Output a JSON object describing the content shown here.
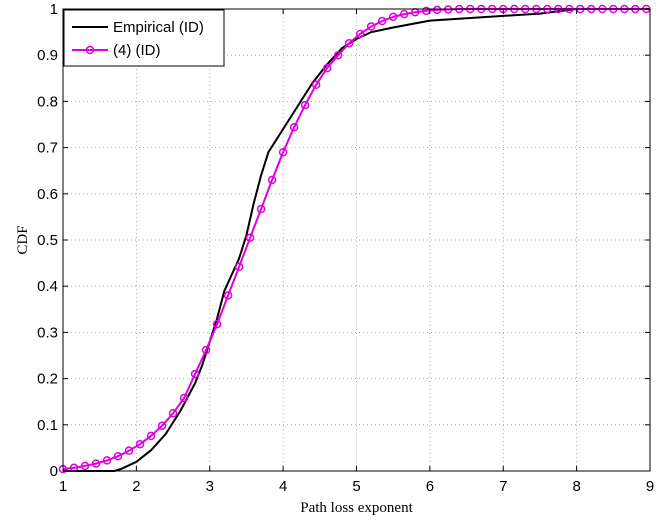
{
  "chart_data": {
    "type": "line",
    "xlabel": "Path loss exponent",
    "ylabel": "CDF",
    "xlim": [
      1,
      9
    ],
    "ylim": [
      0,
      1
    ],
    "xticks": [
      1,
      2,
      3,
      4,
      5,
      6,
      7,
      8,
      9
    ],
    "yticks": [
      0,
      0.1,
      0.2,
      0.3,
      0.4,
      0.5,
      0.6,
      0.7,
      0.8,
      0.9,
      1
    ],
    "xtick_labels": [
      "1",
      "2",
      "3",
      "4",
      "5",
      "6",
      "7",
      "8",
      "9"
    ],
    "ytick_labels": [
      "0",
      "0.1",
      "0.2",
      "0.3",
      "0.4",
      "0.5",
      "0.6",
      "0.7",
      "0.8",
      "0.9",
      "1"
    ],
    "grid": true,
    "legend_position": "top-left",
    "series": [
      {
        "name": "Empirical (ID)",
        "color": "#000000",
        "marker": "none",
        "x": [
          1.0,
          1.7,
          1.8,
          2.0,
          2.2,
          2.4,
          2.6,
          2.8,
          2.9,
          3.0,
          3.1,
          3.2,
          3.4,
          3.5,
          3.6,
          3.7,
          3.8,
          4.0,
          4.2,
          4.4,
          4.6,
          4.8,
          5.0,
          5.2,
          5.5,
          6.0,
          6.5,
          7.0,
          7.5,
          8.0,
          9.0
        ],
        "y": [
          0.0,
          0.0,
          0.005,
          0.02,
          0.045,
          0.08,
          0.13,
          0.19,
          0.23,
          0.28,
          0.33,
          0.39,
          0.46,
          0.51,
          0.58,
          0.64,
          0.69,
          0.74,
          0.79,
          0.84,
          0.88,
          0.915,
          0.935,
          0.95,
          0.96,
          0.975,
          0.98,
          0.985,
          0.99,
          1.0,
          1.0
        ]
      },
      {
        "name": "(4) (ID)",
        "color": "#e000e0",
        "marker": "circle",
        "x": [
          1.0,
          1.15,
          1.3,
          1.45,
          1.6,
          1.75,
          1.9,
          2.05,
          2.2,
          2.35,
          2.5,
          2.65,
          2.8,
          2.95,
          3.1,
          3.25,
          3.4,
          3.55,
          3.7,
          3.85,
          4.0,
          4.15,
          4.3,
          4.45,
          4.6,
          4.75,
          4.9,
          5.05,
          5.2,
          5.35,
          5.5,
          5.65,
          5.8,
          5.95,
          6.1,
          6.25,
          6.4,
          6.55,
          6.7,
          6.85,
          7.0,
          7.15,
          7.3,
          7.45,
          7.6,
          7.75,
          7.9,
          8.05,
          8.2,
          8.35,
          8.5,
          8.65,
          8.8,
          8.95
        ],
        "y": [
          0.004,
          0.007,
          0.011,
          0.016,
          0.023,
          0.032,
          0.044,
          0.058,
          0.076,
          0.098,
          0.125,
          0.158,
          0.21,
          0.262,
          0.318,
          0.38,
          0.442,
          0.505,
          0.567,
          0.63,
          0.69,
          0.744,
          0.792,
          0.836,
          0.872,
          0.9,
          0.926,
          0.946,
          0.962,
          0.974,
          0.983,
          0.989,
          0.993,
          0.996,
          0.998,
          0.999,
          1.0,
          1.0,
          1.0,
          1.0,
          1.0,
          1.0,
          1.0,
          1.0,
          1.0,
          1.0,
          1.0,
          1.0,
          1.0,
          1.0,
          1.0,
          1.0,
          1.0,
          1.0
        ]
      }
    ]
  }
}
